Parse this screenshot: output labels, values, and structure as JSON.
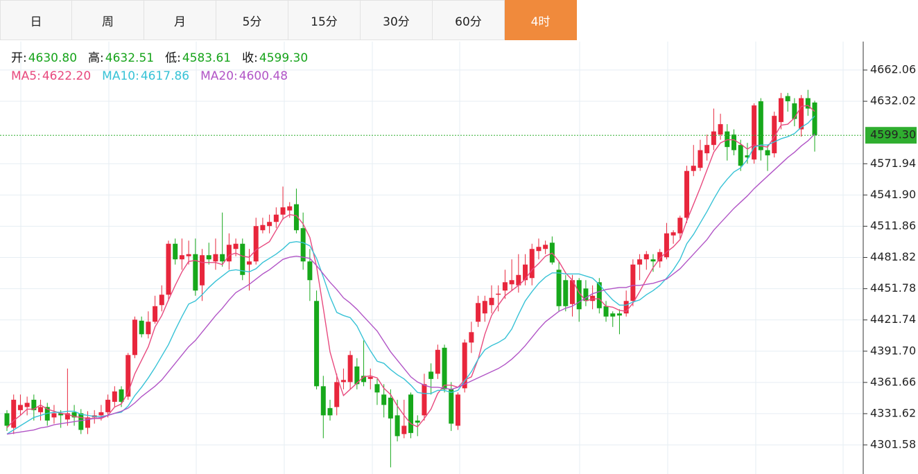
{
  "tabs": {
    "items": [
      "日",
      "周",
      "月",
      "5分",
      "15分",
      "30分",
      "60分",
      "4时"
    ],
    "active": 7
  },
  "chart_data": {
    "type": "candlestick",
    "ohlc_header": [
      {
        "label": "开:",
        "value": "4630.80"
      },
      {
        "label": "高:",
        "value": "4632.51"
      },
      {
        "label": "低:",
        "value": "4583.61"
      },
      {
        "label": "收:",
        "value": "4599.30"
      }
    ],
    "up_color": "#e8263c",
    "down_color": "#17a81b",
    "header_value_color": "#16a31a",
    "ylim": [
      4273.6,
      4689.4
    ],
    "yticks": [
      4301.58,
      4331.62,
      4361.66,
      {
        "value": 4391.7,
        "label": "4391.70"
      },
      4421.74,
      4451.78,
      4481.82,
      4511.86,
      {
        "value": 4541.9,
        "label": "4541.90"
      },
      4571.94,
      4632.02,
      4662.06
    ],
    "grid": true,
    "last_price": {
      "value": 4599.3,
      "label": "4599.30",
      "color": "#2fae2f"
    },
    "open": [
      4332,
      4318,
      4335,
      4338,
      4345,
      4333,
      4338,
      4328,
      4332,
      4326,
      4333,
      4332,
      4318,
      4328,
      4330,
      4333,
      4343,
      4355,
      4348,
      4388,
      4421,
      4408,
      4420,
      4436,
      4446,
      4495,
      4480,
      4483,
      4485,
      4455,
      4484,
      4478,
      4485,
      4478,
      4490,
      4495,
      4475,
      4478,
      4508,
      4512,
      4516,
      4523,
      4527,
      4533,
      4510,
      4478,
      4440,
      4358,
      4337,
      4338,
      4362,
      4362,
      4377,
      4368,
      4365,
      4360,
      4350,
      4347,
      4330,
      4312,
      4350,
      4325,
      4330,
      4372,
      4370,
      4395,
      4355,
      4320,
      4356,
      4400,
      4420,
      4428,
      4436,
      4446,
      4450,
      4456,
      4455,
      4460,
      4462,
      4488,
      4490,
      4496,
      4470,
      4460,
      4437,
      4460,
      4452,
      4440,
      4458,
      4435,
      4428,
      4428,
      4428,
      4440,
      4475,
      4480,
      4480,
      4478,
      4482,
      4503,
      4505,
      4520,
      4565,
      4568,
      4582,
      4590,
      4600,
      4603,
      4600,
      4590,
      4580,
      4576,
      4632,
      4585,
      4582,
      4612,
      4637,
      4630,
      4605,
      4635,
      4630.8
    ],
    "high": [
      4335,
      4350,
      4350,
      4348,
      4350,
      4345,
      4342,
      4340,
      4335,
      4375,
      4340,
      4336,
      4334,
      4335,
      4340,
      4350,
      4358,
      4358,
      4390,
      4425,
      4425,
      4430,
      4445,
      4455,
      4498,
      4500,
      4500,
      4498,
      4500,
      4490,
      4496,
      4500,
      4525,
      4505,
      4500,
      4500,
      4490,
      4520,
      4520,
      4523,
      4530,
      4550,
      4535,
      4548,
      4525,
      4490,
      4450,
      4368,
      4345,
      4370,
      4375,
      4392,
      4385,
      4402,
      4375,
      4365,
      4360,
      4355,
      4345,
      4345,
      4352,
      4330,
      4370,
      4380,
      4398,
      4398,
      4362,
      4352,
      4403,
      4420,
      4445,
      4445,
      4455,
      4455,
      4470,
      4480,
      4485,
      4485,
      4495,
      4500,
      4498,
      4502,
      4478,
      4465,
      4465,
      4462,
      4460,
      4455,
      4462,
      4440,
      4430,
      4432,
      4450,
      4480,
      4485,
      4488,
      4485,
      4490,
      4515,
      4508,
      4522,
      4570,
      4590,
      4595,
      4600,
      4625,
      4620,
      4610,
      4605,
      4595,
      4592,
      4630,
      4635,
      4590,
      4622,
      4640,
      4640,
      4635,
      4638,
      4643,
      4632.51
    ],
    "low": [
      4315,
      4312,
      4330,
      4330,
      4325,
      4325,
      4320,
      4322,
      4318,
      4320,
      4320,
      4312,
      4312,
      4322,
      4325,
      4328,
      4338,
      4338,
      4345,
      4385,
      4405,
      4404,
      4418,
      4430,
      4440,
      4475,
      4470,
      4475,
      4445,
      4440,
      4475,
      4470,
      4473,
      4470,
      4483,
      4460,
      4450,
      4475,
      4505,
      4505,
      4510,
      4518,
      4520,
      4505,
      4470,
      4440,
      4355,
      4308,
      4325,
      4330,
      4355,
      4355,
      4355,
      4358,
      4355,
      4340,
      4328,
      4280,
      4305,
      4308,
      4308,
      4310,
      4325,
      4350,
      4365,
      4352,
      4315,
      4316,
      4352,
      4390,
      4415,
      4420,
      4428,
      4430,
      4442,
      4450,
      4448,
      4455,
      4455,
      4480,
      4485,
      4475,
      4430,
      4430,
      4425,
      4420,
      4435,
      4432,
      4428,
      4420,
      4415,
      4408,
      4425,
      4435,
      4460,
      4470,
      4468,
      4472,
      4480,
      4495,
      4500,
      4515,
      4560,
      4565,
      4575,
      4585,
      4595,
      4575,
      4580,
      4565,
      4572,
      4572,
      4575,
      4565,
      4578,
      4605,
      4622,
      4608,
      4598,
      4618,
      4583.61
    ],
    "close": [
      4320,
      4345,
      4340,
      4342,
      4335,
      4338,
      4325,
      4332,
      4330,
      4332,
      4328,
      4316,
      4328,
      4330,
      4333,
      4345,
      4353,
      4343,
      4388,
      4422,
      4408,
      4420,
      4435,
      4446,
      4495,
      4480,
      4484,
      4485,
      4450,
      4484,
      4480,
      4485,
      4478,
      4494,
      4495,
      4465,
      4478,
      4512,
      4513,
      4516,
      4523,
      4530,
      4531,
      4508,
      4478,
      4460,
      4358,
      4330,
      4330,
      4362,
      4364,
      4388,
      4360,
      4362,
      4367,
      4352,
      4340,
      4327,
      4310,
      4320,
      4313,
      4323,
      4360,
      4365,
      4393,
      4355,
      4322,
      4350,
      4400,
      4410,
      4438,
      4440,
      4443,
      4447,
      4458,
      4460,
      4465,
      4475,
      4490,
      4492,
      4494,
      4477,
      4435,
      4435,
      4460,
      4432,
      4440,
      4445,
      4433,
      4425,
      4425,
      4426,
      4440,
      4475,
      4480,
      4485,
      4478,
      4487,
      4505,
      4506,
      4520,
      4565,
      4570,
      4585,
      4590,
      4603,
      4610,
      4588,
      4585,
      4570,
      4578,
      4628,
      4585,
      4580,
      4618,
      4635,
      4632,
      4615,
      4635,
      4625,
      4599.3
    ],
    "series": [
      {
        "name": "MA5:",
        "last": "4622.20",
        "color": "#e8497e",
        "values": [
          4318,
          4325,
          4330,
          4336,
          4336,
          4340,
          4336,
          4334,
          4332,
          4331,
          4329,
          4328,
          4327,
          4327,
          4327,
          4330,
          4338,
          4341,
          4352,
          4370,
          4383,
          4396,
          4415,
          4426,
          4441,
          4455,
          4468,
          4478,
          4479,
          4477,
          4477,
          4477,
          4475,
          4484,
          4486,
          4483,
          4482,
          4489,
          4493,
          4497,
          4508,
          4519,
          4523,
          4522,
          4514,
          4501,
          4473,
          4433,
          4391,
          4368,
          4349,
          4355,
          4361,
          4367,
          4368,
          4366,
          4356,
          4350,
          4339,
          4330,
          4322,
          4319,
          4327,
          4336,
          4351,
          4359,
          4359,
          4357,
          4364,
          4367,
          4384,
          4408,
          4426,
          4436,
          4445,
          4450,
          4455,
          4461,
          4470,
          4476,
          4483,
          4486,
          4478,
          4467,
          4460,
          4448,
          4440,
          4442,
          4442,
          4435,
          4434,
          4431,
          4430,
          4438,
          4449,
          4461,
          4472,
          4481,
          4487,
          4492,
          4499,
          4517,
          4533,
          4549,
          4566,
          4583,
          4592,
          4595,
          4595,
          4591,
          4586,
          4590,
          4589,
          4588,
          4598,
          4609,
          4610,
          4616,
          4627,
          4628,
          4622.2
        ]
      },
      {
        "name": "MA10:",
        "last": "4617.86",
        "color": "#37c2d6",
        "values": [
          4312,
          4316,
          4320,
          4324,
          4328,
          4330,
          4332,
          4333,
          4333,
          4334,
          4334,
          4331,
          4330,
          4329,
          4329,
          4330,
          4332,
          4333,
          4339,
          4349,
          4357,
          4366,
          4376,
          4387,
          4398,
          4412,
          4425,
          4437,
          4440,
          4446,
          4453,
          4459,
          4464,
          4469,
          4470,
          4469,
          4468,
          4471,
          4477,
          4481,
          4485,
          4490,
          4496,
          4497,
          4496,
          4493,
          4481,
          4463,
          4444,
          4429,
          4426,
          4424,
          4416,
          4403,
          4392,
          4382,
          4380,
          4374,
          4369,
          4365,
          4359,
          4352,
          4351,
          4351,
          4354,
          4354,
          4352,
          4354,
          4363,
          4372,
          4384,
          4393,
          4397,
          4400,
          4404,
          4413,
          4427,
          4440,
          4449,
          4457,
          4463,
          4467,
          4467,
          4466,
          4466,
          4466,
          4464,
          4462,
          4456,
          4448,
          4441,
          4436,
          4436,
          4439,
          4441,
          4446,
          4450,
          4455,
          4462,
          4470,
          4480,
          4495,
          4504,
          4515,
          4526,
          4538,
          4549,
          4557,
          4564,
          4568,
          4576,
          4588,
          4590,
          4590,
          4593,
          4596,
          4598,
          4601,
          4607,
          4611,
          4617.86
        ]
      },
      {
        "name": "MA20:",
        "last": "4600.48",
        "color": "#b154c6",
        "values": [
          4312,
          4313,
          4314,
          4315,
          4316,
          4318,
          4319,
          4321,
          4322,
          4323,
          4324,
          4325,
          4326,
          4327,
          4328,
          4330,
          4332,
          4334,
          4337,
          4342,
          4348,
          4353,
          4358,
          4364,
          4372,
          4380,
          4388,
          4396,
          4402,
          4410,
          4418,
          4426,
          4433,
          4441,
          4448,
          4452,
          4456,
          4461,
          4466,
          4470,
          4475,
          4480,
          4482,
          4483,
          4482,
          4481,
          4474,
          4466,
          4458,
          4451,
          4443,
          4438,
          4432,
          4425,
          4418,
          4411,
          4401,
          4391,
          4383,
          4375,
          4367,
          4362,
          4359,
          4357,
          4357,
          4356,
          4355,
          4357,
          4360,
          4363,
          4366,
          4369,
          4372,
          4375,
          4379,
          4384,
          4390,
          4397,
          4405,
          4413,
          4420,
          4425,
          4430,
          4433,
          4435,
          4439,
          4443,
          4447,
          4449,
          4451,
          4452,
          4453,
          4453,
          4455,
          4455,
          4456,
          4457,
          4459,
          4461,
          4466,
          4471,
          4478,
          4485,
          4492,
          4499,
          4508,
          4515,
          4522,
          4529,
          4535,
          4541,
          4548,
          4554,
          4560,
          4566,
          4572,
          4578,
          4583,
          4589,
          4594,
          4600.48
        ]
      }
    ]
  }
}
